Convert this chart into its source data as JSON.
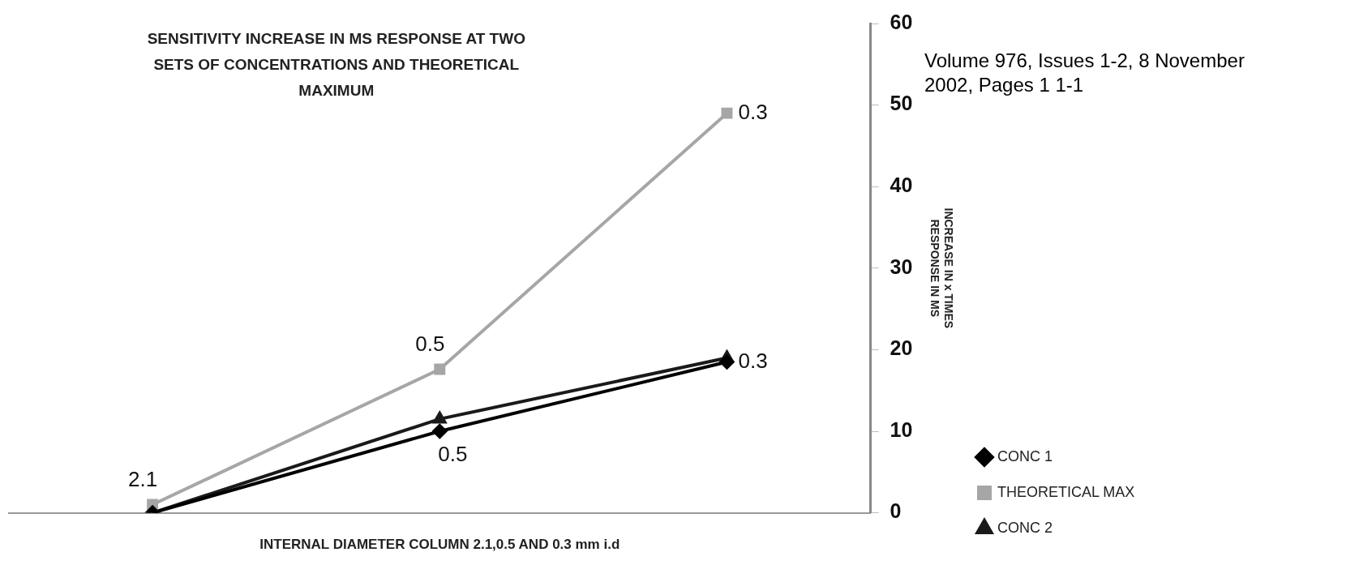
{
  "chart_data": {
    "type": "line",
    "title": "SENSITIVITY INCREASE IN MS RESPONSE AT TWO SETS OF CONCENTRATIONS AND THEORETICAL MAXIMUM",
    "xlabel": "INTERNAL DIAMETER COLUMN 2.1,0.5 AND 0.3 mm i.d",
    "ylabel": "INCREASE IN  x TIMES RESPONSE IN MS",
    "categories": [
      null,
      null,
      null
    ],
    "ylim": [
      0,
      60
    ],
    "yticks": [
      0,
      10,
      20,
      30,
      40,
      50,
      60
    ],
    "tick_labels": "y",
    "grid": false,
    "legend": "bottom right",
    "line_style": "solid",
    "series": [
      {
        "name": "CONC 1",
        "color": "#000000",
        "marker": "diamond",
        "values": [
          0,
          10,
          18.5
        ]
      },
      {
        "name": "THEORETICAL MAX",
        "color": "#a6a6a6",
        "marker": "square",
        "values": [
          1,
          17.6,
          49
        ]
      },
      {
        "name": "CONC 2",
        "color": "#1a1a1a",
        "marker": "triangle",
        "values": [
          0,
          11.5,
          19
        ]
      }
    ],
    "annotations": [
      "2.1",
      "0.5",
      "0.3",
      "0.5",
      "0.3",
      "Volume 976, Issues 1-2, 8 November 2002, Pages 1 1-1"
    ]
  }
}
